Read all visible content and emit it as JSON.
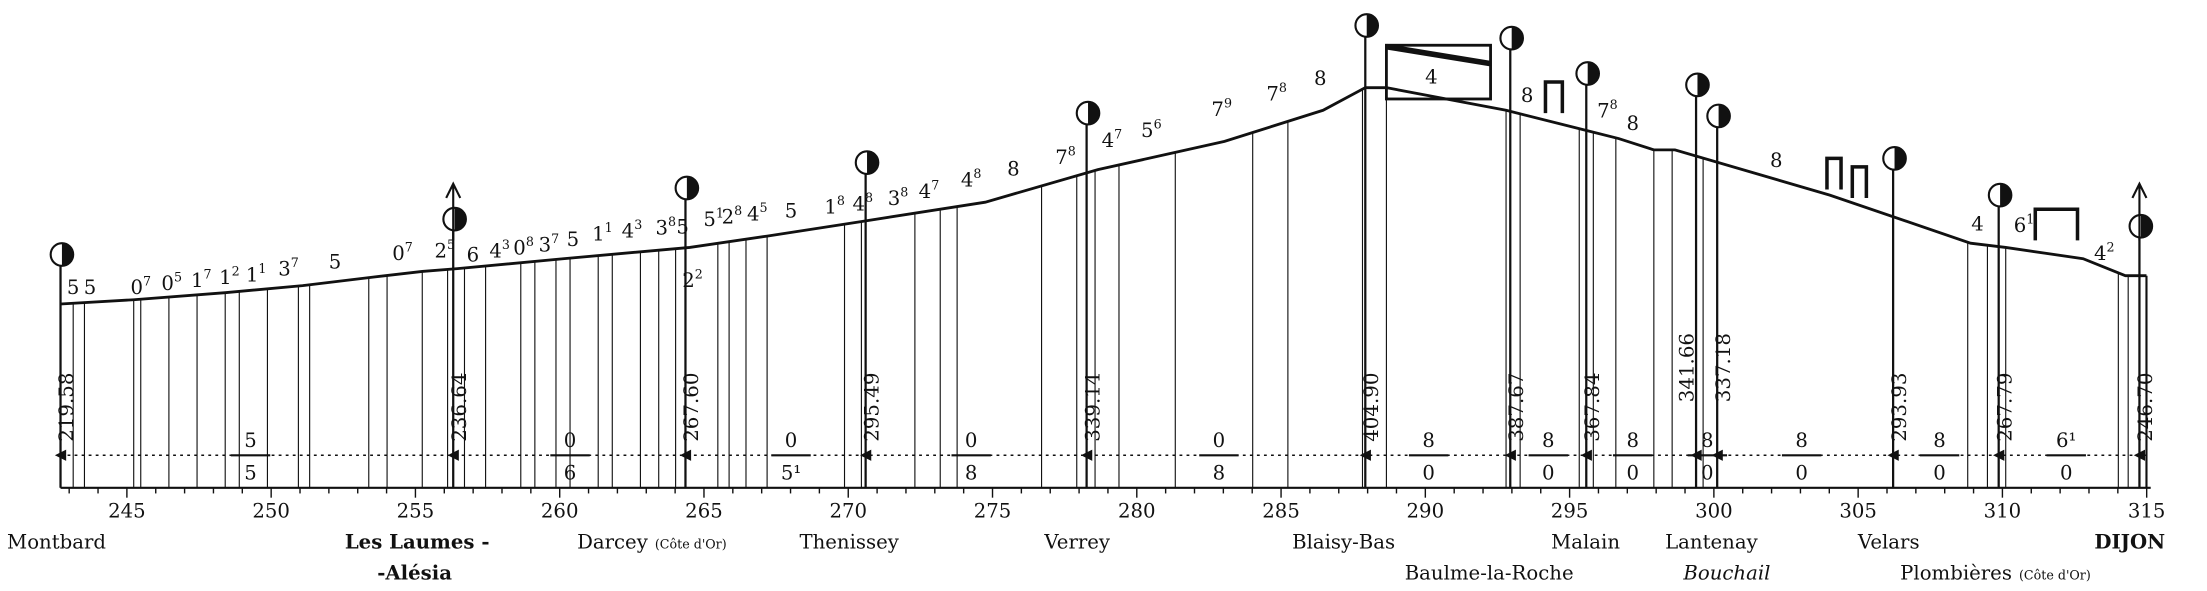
{
  "profile": {
    "km_labels": [
      "245",
      "250",
      "255",
      "260",
      "265",
      "270",
      "275",
      "280",
      "285",
      "290",
      "295",
      "300",
      "305",
      "310",
      "315"
    ],
    "altitudes": [
      "219.58",
      "236.64",
      "267.60",
      "295.49",
      "339.14",
      "404.90",
      "387.67",
      "367.84",
      "341.66",
      "337.18",
      "293.93",
      "267.79",
      "246.70"
    ],
    "gradients": [
      {
        "base": "5"
      },
      {
        "base": "5"
      },
      {
        "base": "0",
        "sup": "7"
      },
      {
        "base": "0",
        "sup": "5"
      },
      {
        "base": "1",
        "sup": "7"
      },
      {
        "base": "1",
        "sup": "2"
      },
      {
        "base": "1",
        "sup": "1"
      },
      {
        "base": "3",
        "sup": "7"
      },
      {
        "base": "5"
      },
      {
        "base": "0",
        "sup": "7"
      },
      {
        "base": "2",
        "sup": "5"
      },
      {
        "base": "6"
      },
      {
        "base": "4",
        "sup": "3"
      },
      {
        "base": "0",
        "sup": "8"
      },
      {
        "base": "3",
        "sup": "7"
      },
      {
        "base": "5"
      },
      {
        "base": "1",
        "sup": "1"
      },
      {
        "base": "4",
        "sup": "3"
      },
      {
        "base": "3",
        "sup": "8"
      },
      {
        "base": "5"
      },
      {
        "base": "5",
        "sup": "1"
      },
      {
        "base": "2",
        "sup": "8"
      },
      {
        "base": "4",
        "sup": "5"
      },
      {
        "base": "5"
      },
      {
        "base": "1",
        "sup": "8"
      },
      {
        "base": "4",
        "sup": "8"
      },
      {
        "base": "3",
        "sup": "8"
      },
      {
        "base": "4",
        "sup": "7"
      },
      {
        "base": "4",
        "sup": "8"
      },
      {
        "base": "8"
      },
      {
        "base": "7",
        "sup": "8"
      },
      {
        "base": "4",
        "sup": "7"
      },
      {
        "base": "5",
        "sup": "6"
      },
      {
        "base": "7",
        "sup": "9"
      },
      {
        "base": "7",
        "sup": "8"
      },
      {
        "base": "8"
      },
      {
        "base": "4"
      },
      {
        "base": "8"
      },
      {
        "base": "7",
        "sup": "8"
      },
      {
        "base": "8"
      },
      {
        "base": "8"
      },
      {
        "base": "4"
      },
      {
        "base": "6",
        "sup": "1"
      },
      {
        "base": "4",
        "sup": "2"
      },
      {
        "base": "2",
        "sup": "2"
      }
    ],
    "sections": [
      {
        "top": "5",
        "bottom": "5"
      },
      {
        "top": "0",
        "bottom": "6"
      },
      {
        "top": "0",
        "bottom": "5¹"
      },
      {
        "top": "0",
        "bottom": "8"
      },
      {
        "top": "0",
        "bottom": "8"
      },
      {
        "top": "8",
        "bottom": "0"
      },
      {
        "top": "8",
        "bottom": "0"
      },
      {
        "top": "8",
        "bottom": "0"
      },
      {
        "top": "8",
        "bottom": "0"
      },
      {
        "top": "8",
        "bottom": "0"
      },
      {
        "top": "8",
        "bottom": "0"
      },
      {
        "top": "6¹",
        "bottom": "0"
      }
    ],
    "stations": [
      {
        "name": "Montbard"
      },
      {
        "name": "Les Laumes -"
      },
      {
        "name": "-Alésia"
      },
      {
        "name": "Darcey",
        "note": "(Côte d'Or)"
      },
      {
        "name": "Thenissey"
      },
      {
        "name": "Verrey"
      },
      {
        "name": "Blaisy-Bas"
      },
      {
        "name": "Baulme-la-Roche"
      },
      {
        "name": "Malain"
      },
      {
        "name": "Lantenay"
      },
      {
        "name": "Bouchail"
      },
      {
        "name": "Velars"
      },
      {
        "name": "Plombières",
        "note": "(Côte d'Or)"
      },
      {
        "name": "DIJON"
      }
    ]
  }
}
